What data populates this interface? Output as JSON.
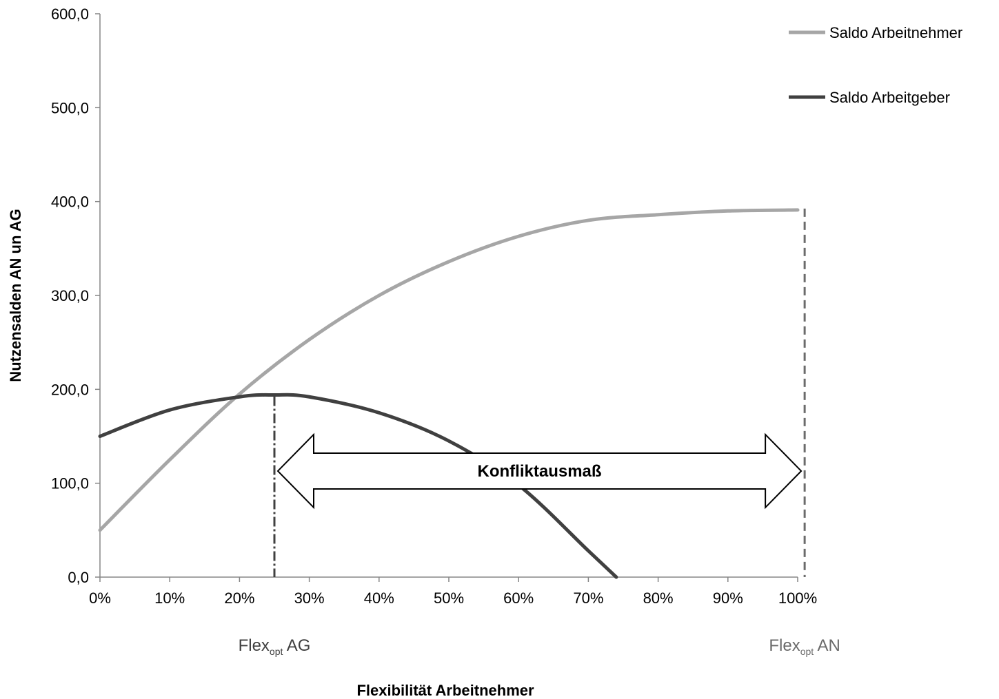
{
  "chart_data": {
    "type": "line",
    "title": "",
    "xlabel": "Flexibilität Arbeitnehmer",
    "ylabel": "Nutzensalden AN un AG",
    "xlim": [
      0,
      100
    ],
    "ylim": [
      0,
      600
    ],
    "x_ticks": [
      0,
      10,
      20,
      30,
      40,
      50,
      60,
      70,
      80,
      90,
      100
    ],
    "x_tick_labels": [
      "0%",
      "10%",
      "20%",
      "30%",
      "40%",
      "50%",
      "60%",
      "70%",
      "80%",
      "90%",
      "100%"
    ],
    "y_ticks": [
      0,
      100,
      200,
      300,
      400,
      500,
      600
    ],
    "y_tick_labels": [
      "0,0",
      "100,0",
      "200,0",
      "300,0",
      "400,0",
      "500,0",
      "600,0"
    ],
    "grid": false,
    "legend_position": "top-right",
    "series": [
      {
        "name": "Saldo Arbeitnehmer",
        "color": "#a6a6a6",
        "x": [
          0,
          10,
          20,
          30,
          40,
          50,
          60,
          70,
          80,
          90,
          100
        ],
        "y": [
          50,
          125,
          195,
          253,
          300,
          336,
          363,
          380,
          386,
          390,
          391
        ]
      },
      {
        "name": "Saldo Arbeitgeber",
        "color": "#404040",
        "x": [
          0,
          10,
          20,
          25,
          30,
          40,
          50,
          60,
          70,
          74
        ],
        "y": [
          150,
          178,
          192,
          194,
          192,
          175,
          145,
          98,
          28,
          0
        ]
      }
    ],
    "annotations": {
      "flex_opt_ag": {
        "x": 25,
        "text_main": "Flex",
        "text_sub": "opt",
        "text_suffix": " AG",
        "color": "#404040"
      },
      "flex_opt_an": {
        "x": 101,
        "text_main": "Flex",
        "text_sub": "opt",
        "text_suffix": " AN",
        "color": "#6b6b6b"
      },
      "conflict_arrow": {
        "x_start": 25,
        "x_end": 101,
        "y": 113,
        "label": "Konfliktausmaß"
      }
    }
  }
}
